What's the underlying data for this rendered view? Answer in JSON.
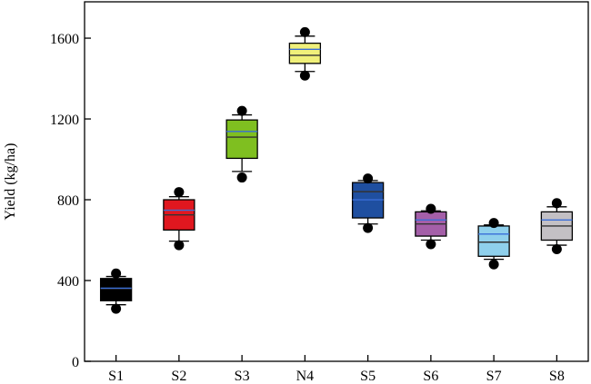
{
  "chart_data": {
    "type": "box",
    "title": "",
    "xlabel": "",
    "ylabel": "Yield (kg/ha)",
    "ylim": [
      0,
      1780
    ],
    "yticks": [
      0,
      400,
      800,
      1200,
      1600
    ],
    "grid": false,
    "categories": [
      "S1",
      "S2",
      "S3",
      "N4",
      "S5",
      "S6",
      "S7",
      "S8"
    ],
    "boxes": [
      {
        "category": "S1",
        "color": "#000000",
        "whisker_low": 280,
        "q1": 300,
        "median": 360,
        "mean": 362,
        "q3": 410,
        "whisker_high": 420,
        "outlier_low": 260,
        "outlier_high": 435
      },
      {
        "category": "S2",
        "color": "#e0171f",
        "whisker_low": 595,
        "q1": 650,
        "median": 725,
        "mean": 748,
        "q3": 800,
        "whisker_high": 815,
        "outlier_low": 575,
        "outlier_high": 838
      },
      {
        "category": "S3",
        "color": "#7fbf20",
        "whisker_low": 940,
        "q1": 1005,
        "median": 1110,
        "mean": 1138,
        "q3": 1195,
        "whisker_high": 1220,
        "outlier_low": 910,
        "outlier_high": 1240
      },
      {
        "category": "N4",
        "color": "#f0f07a",
        "whisker_low": 1435,
        "q1": 1475,
        "median": 1515,
        "mean": 1545,
        "q3": 1575,
        "whisker_high": 1610,
        "outlier_low": 1415,
        "outlier_high": 1630
      },
      {
        "category": "S5",
        "color": "#1f4fa0",
        "whisker_low": 680,
        "q1": 710,
        "median": 840,
        "mean": 800,
        "q3": 885,
        "whisker_high": 895,
        "outlier_low": 660,
        "outlier_high": 905
      },
      {
        "category": "S6",
        "color": "#a45fa8",
        "whisker_low": 600,
        "q1": 620,
        "median": 680,
        "mean": 700,
        "q3": 740,
        "whisker_high": 745,
        "outlier_low": 580,
        "outlier_high": 755
      },
      {
        "category": "S7",
        "color": "#8fd0ec",
        "whisker_low": 505,
        "q1": 520,
        "median": 590,
        "mean": 630,
        "q3": 670,
        "whisker_high": 675,
        "outlier_low": 480,
        "outlier_high": 685
      },
      {
        "category": "S8",
        "color": "#c3c0c4",
        "whisker_low": 575,
        "q1": 600,
        "median": 670,
        "mean": 700,
        "q3": 740,
        "whisker_high": 765,
        "outlier_low": 555,
        "outlier_high": 783
      }
    ],
    "mean_line_color": "#3a6ed8",
    "median_line_color": "#333333"
  }
}
